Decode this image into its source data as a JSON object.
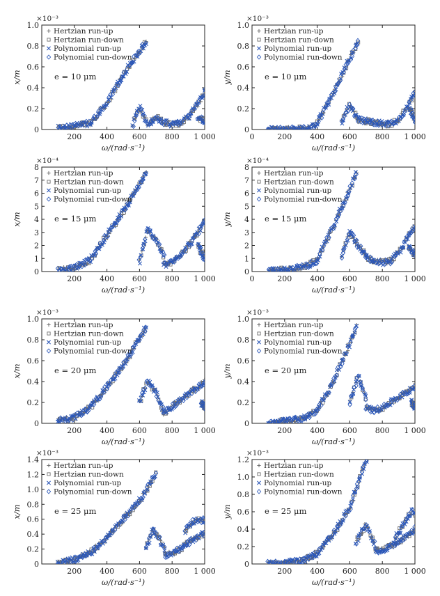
{
  "legend_entries": [
    "Hertzian run-up",
    "Hertzian run-down",
    "Polynomial run-up",
    "Polynomial run-down"
  ],
  "colors": {
    "hertzian": "#6e6e6e",
    "polynomial": "#2b57b8"
  },
  "markers": {
    "hertzian_run_up": "plus",
    "hertzian_run_down": "square",
    "polynomial_run_up": "cross",
    "polynomial_run_down": "diamond"
  },
  "chart_data": [
    {
      "type": "scatter",
      "xlabel": "ω/(rad·s⁻¹)",
      "ylabel": "x/m",
      "exponent": "×10⁻³",
      "annotation": "e = 10 μm",
      "xlim": [
        0,
        1000
      ],
      "ylim": [
        0,
        1.0
      ],
      "xticks": [
        200,
        400,
        600,
        800,
        1000
      ],
      "xtick_labels": [
        "200",
        "400",
        "600",
        "800",
        "1 000"
      ],
      "yticks": [
        0,
        0.2,
        0.4,
        0.6,
        0.8,
        1.0
      ],
      "ytick_labels": [
        "0",
        "0.2",
        "0.4",
        "0.6",
        "0.8",
        "1.0"
      ],
      "segments": [
        {
          "x": [
            100,
            300,
            400,
            500,
            640
          ],
          "y": [
            0.01,
            0.06,
            0.25,
            0.52,
            0.84
          ]
        },
        {
          "x": [
            560,
            600,
            640
          ],
          "y": [
            0.05,
            0.22,
            0.08
          ]
        },
        {
          "x": [
            650,
            700,
            750,
            800,
            850,
            900,
            950,
            1000
          ],
          "y": [
            0.04,
            0.12,
            0.07,
            0.05,
            0.06,
            0.12,
            0.23,
            0.36
          ]
        },
        {
          "x": [
            960,
            1000
          ],
          "y": [
            0.12,
            0.08
          ]
        }
      ]
    },
    {
      "type": "scatter",
      "xlabel": "ω/(rad·s⁻¹)",
      "ylabel": "y/m",
      "exponent": "×10⁻³",
      "annotation": "e = 10 μm",
      "xlim": [
        0,
        1000
      ],
      "ylim": [
        0,
        1.0
      ],
      "xticks": [
        0,
        200,
        400,
        600,
        800,
        1000
      ],
      "xtick_labels": [
        "0",
        "200",
        "400",
        "600",
        "800",
        "1 000"
      ],
      "yticks": [
        0,
        0.2,
        0.4,
        0.6,
        0.8,
        1.0
      ],
      "ytick_labels": [
        "0",
        "0.2",
        "0.4",
        "0.6",
        "0.8",
        "1.0"
      ],
      "segments": [
        {
          "x": [
            100,
            350,
            400,
            500,
            650
          ],
          "y": [
            0.0,
            0.01,
            0.06,
            0.35,
            0.84
          ]
        },
        {
          "x": [
            550,
            600,
            650
          ],
          "y": [
            0.08,
            0.24,
            0.1
          ]
        },
        {
          "x": [
            650,
            700,
            750,
            800,
            850,
            900,
            950,
            1000
          ],
          "y": [
            0.1,
            0.08,
            0.07,
            0.06,
            0.05,
            0.09,
            0.22,
            0.35
          ]
        },
        {
          "x": [
            970,
            1000
          ],
          "y": [
            0.2,
            0.08
          ]
        }
      ]
    },
    {
      "type": "scatter",
      "xlabel": "ω/(rad·s⁻¹)",
      "ylabel": "x/m",
      "exponent": "×10⁻⁴",
      "annotation": "e = 15 μm",
      "xlim": [
        0,
        1000
      ],
      "ylim": [
        0,
        8
      ],
      "xticks": [
        200,
        400,
        600,
        800,
        1000
      ],
      "xtick_labels": [
        "200",
        "400",
        "600",
        "800",
        "1 000"
      ],
      "yticks": [
        0,
        1,
        2,
        3,
        4,
        5,
        6,
        7,
        8
      ],
      "ytick_labels": [
        "0",
        "1",
        "2",
        "3",
        "4",
        "5",
        "6",
        "7",
        "8"
      ],
      "segments": [
        {
          "x": [
            100,
            200,
            300,
            400,
            500,
            640
          ],
          "y": [
            0.1,
            0.3,
            0.9,
            2.8,
            4.6,
            7.5
          ]
        },
        {
          "x": [
            600,
            650,
            700,
            750
          ],
          "y": [
            0.8,
            3.2,
            2.5,
            1.2
          ]
        },
        {
          "x": [
            750,
            800,
            850,
            900,
            950,
            1000
          ],
          "y": [
            0.5,
            0.7,
            1.3,
            2.0,
            2.8,
            3.8
          ]
        },
        {
          "x": [
            960,
            1000
          ],
          "y": [
            2.0,
            1.0
          ]
        }
      ]
    },
    {
      "type": "scatter",
      "xlabel": "ω/(rad·s⁻¹)",
      "ylabel": "y/m",
      "exponent": "×10⁻⁴",
      "annotation": "e = 15 μm",
      "xlim": [
        0,
        1000
      ],
      "ylim": [
        0,
        8
      ],
      "xticks": [
        0,
        200,
        400,
        600,
        800,
        1000
      ],
      "xtick_labels": [
        "0",
        "200",
        "400",
        "600",
        "800",
        "1 000"
      ],
      "yticks": [
        0,
        1,
        2,
        3,
        4,
        5,
        6,
        7,
        8
      ],
      "ytick_labels": [
        "0",
        "1",
        "2",
        "3",
        "4",
        "5",
        "6",
        "7",
        "8"
      ],
      "segments": [
        {
          "x": [
            100,
            300,
            400,
            500,
            640
          ],
          "y": [
            0.0,
            0.3,
            0.8,
            3.5,
            7.5
          ]
        },
        {
          "x": [
            550,
            600,
            650,
            700
          ],
          "y": [
            1.2,
            3.0,
            2.0,
            1.2
          ]
        },
        {
          "x": [
            700,
            750,
            800,
            850,
            900,
            950,
            1000
          ],
          "y": [
            1.1,
            0.8,
            0.7,
            0.8,
            1.4,
            2.5,
            3.5
          ]
        },
        {
          "x": [
            960,
            1000
          ],
          "y": [
            2.0,
            1.2
          ]
        }
      ]
    },
    {
      "type": "scatter",
      "xlabel": "ω/(rad·s⁻¹)",
      "ylabel": "x/m",
      "exponent": "×10⁻³",
      "annotation": "e = 20 μm",
      "xlim": [
        0,
        1000
      ],
      "ylim": [
        0,
        1.0
      ],
      "xticks": [
        200,
        400,
        600,
        800,
        1000
      ],
      "xtick_labels": [
        "200",
        "400",
        "600",
        "800",
        "1 000"
      ],
      "yticks": [
        0,
        0.2,
        0.4,
        0.6,
        0.8,
        1.0
      ],
      "ytick_labels": [
        "0",
        "0.2",
        "0.4",
        "0.6",
        "0.8",
        "1.0"
      ],
      "segments": [
        {
          "x": [
            100,
            200,
            300,
            400,
            500,
            640
          ],
          "y": [
            0.02,
            0.06,
            0.15,
            0.35,
            0.55,
            0.92
          ]
        },
        {
          "x": [
            600,
            650,
            700,
            750
          ],
          "y": [
            0.2,
            0.4,
            0.3,
            0.1
          ]
        },
        {
          "x": [
            750,
            800,
            850,
            900,
            950,
            1000
          ],
          "y": [
            0.1,
            0.16,
            0.22,
            0.28,
            0.33,
            0.4
          ]
        },
        {
          "x": [
            980,
            1000
          ],
          "y": [
            0.2,
            0.15
          ]
        }
      ]
    },
    {
      "type": "scatter",
      "xlabel": "ω/(rad·s⁻¹)",
      "ylabel": "y/m",
      "exponent": "×10⁻³",
      "annotation": "e = 20 μm",
      "xlim": [
        0,
        1000
      ],
      "ylim": [
        0,
        1.0
      ],
      "xticks": [
        200,
        400,
        600,
        800,
        1000
      ],
      "xtick_labels": [
        "200",
        "400",
        "600",
        "800",
        "1 000"
      ],
      "yticks": [
        0,
        0.2,
        0.4,
        0.6,
        0.8,
        1.0
      ],
      "ytick_labels": [
        "0",
        "0.2",
        "0.4",
        "0.6",
        "0.8",
        "1.0"
      ],
      "segments": [
        {
          "x": [
            100,
            300,
            400,
            500,
            640
          ],
          "y": [
            0.0,
            0.04,
            0.12,
            0.4,
            0.92
          ]
        },
        {
          "x": [
            600,
            650,
            700
          ],
          "y": [
            0.2,
            0.45,
            0.25
          ]
        },
        {
          "x": [
            700,
            750,
            800,
            850,
            900,
            950,
            1000
          ],
          "y": [
            0.15,
            0.12,
            0.15,
            0.2,
            0.25,
            0.3,
            0.36
          ]
        },
        {
          "x": [
            980,
            1000
          ],
          "y": [
            0.2,
            0.15
          ]
        }
      ]
    },
    {
      "type": "scatter",
      "xlabel": "ω/(rad·s⁻¹)",
      "ylabel": "x/m",
      "exponent": "×10⁻³",
      "annotation": "e = 25 μm",
      "xlim": [
        0,
        1000
      ],
      "ylim": [
        0,
        1.4
      ],
      "xticks": [
        200,
        400,
        600,
        800,
        1000
      ],
      "xtick_labels": [
        "200",
        "400",
        "600",
        "800",
        "1 000"
      ],
      "yticks": [
        0,
        0.2,
        0.4,
        0.6,
        0.8,
        1.0,
        1.2,
        1.4
      ],
      "ytick_labels": [
        "0",
        "0.2",
        "0.4",
        "0.6",
        "0.8",
        "1.0",
        "1.2",
        "1.4"
      ],
      "segments": [
        {
          "x": [
            100,
            200,
            300,
            400,
            500,
            600,
            700
          ],
          "y": [
            0.02,
            0.06,
            0.15,
            0.35,
            0.6,
            0.85,
            1.2
          ]
        },
        {
          "x": [
            640,
            680,
            720,
            760
          ],
          "y": [
            0.2,
            0.45,
            0.35,
            0.15
          ]
        },
        {
          "x": [
            760,
            800,
            850,
            900,
            950,
            1000
          ],
          "y": [
            0.12,
            0.15,
            0.2,
            0.28,
            0.35,
            0.42
          ]
        },
        {
          "x": [
            880,
            920,
            960,
            1000
          ],
          "y": [
            0.45,
            0.55,
            0.6,
            0.58
          ]
        }
      ]
    },
    {
      "type": "scatter",
      "xlabel": "ω/(rad·s⁻¹)",
      "ylabel": "y/m",
      "exponent": "×10⁻³",
      "annotation": "e = 25 μm",
      "xlim": [
        0,
        1000
      ],
      "ylim": [
        0,
        1.2
      ],
      "xticks": [
        200,
        400,
        600,
        800,
        1000
      ],
      "xtick_labels": [
        "200",
        "400",
        "600",
        "800",
        "1 000"
      ],
      "yticks": [
        0,
        0.2,
        0.4,
        0.6,
        0.8,
        1.0,
        1.2
      ],
      "ytick_labels": [
        "0",
        "0.2",
        "0.4",
        "0.6",
        "0.8",
        "1.0",
        "1.2"
      ],
      "segments": [
        {
          "x": [
            100,
            300,
            400,
            500,
            600,
            700
          ],
          "y": [
            0.0,
            0.03,
            0.12,
            0.35,
            0.65,
            1.2
          ]
        },
        {
          "x": [
            640,
            700,
            760
          ],
          "y": [
            0.25,
            0.45,
            0.2
          ]
        },
        {
          "x": [
            760,
            800,
            850,
            900,
            950,
            1000
          ],
          "y": [
            0.15,
            0.16,
            0.2,
            0.25,
            0.32,
            0.4
          ]
        },
        {
          "x": [
            880,
            930,
            980,
            1000
          ],
          "y": [
            0.3,
            0.45,
            0.6,
            0.58
          ]
        }
      ]
    }
  ]
}
